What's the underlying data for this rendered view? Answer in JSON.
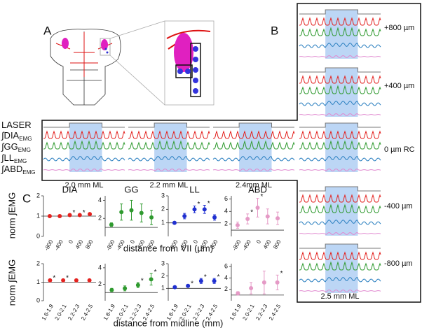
{
  "panel_labels": [
    "A",
    "B",
    "C"
  ],
  "trace_labels": [
    {
      "text": "LASER"
    },
    {
      "text": "∫DIA",
      "sub": "EMG"
    },
    {
      "text": "∫GG",
      "sub": "EMG"
    },
    {
      "text": "∫LL",
      "sub": "EMG"
    },
    {
      "text": "∫ABD",
      "sub": "EMG"
    }
  ],
  "columns": [
    "2.0 mm ML",
    "2.2 mm ML",
    "2.4mm ML",
    "2.5 mm ML"
  ],
  "rc_labels": [
    "+800 µm",
    "+400 µm",
    "0 µm RC",
    "-400 µm",
    "-800 µm"
  ],
  "y_axis_label": "norm ∫EMG",
  "x_axis_labels": [
    "distance from VII (µm)",
    "distance from midline (mm)"
  ],
  "chart_data": [
    {
      "type": "scatter",
      "title": "DIA",
      "color": "#e3221f",
      "x": [
        -800,
        -400,
        0,
        400,
        800
      ],
      "values": [
        1.0,
        1.0,
        1.05,
        1.05,
        1.1
      ],
      "errors": [
        0.03,
        0.03,
        0.04,
        0.04,
        0.04
      ],
      "stars": [
        null,
        null,
        "*",
        "*",
        null
      ],
      "xlim": [
        -1050,
        1050
      ],
      "xticks": [
        -800,
        -400,
        0,
        400,
        800
      ],
      "ylim": [
        0,
        2
      ],
      "yticks": [
        0,
        1,
        2
      ],
      "refline": 1
    },
    {
      "type": "scatter",
      "title": "GG",
      "color": "#2f9a2f",
      "x": [
        -800,
        -400,
        0,
        400,
        800
      ],
      "values": [
        1.3,
        2.7,
        2.9,
        2.6,
        2.1
      ],
      "errors": [
        0.2,
        0.9,
        1.1,
        1.0,
        0.8
      ],
      "stars": [
        null,
        null,
        null,
        null,
        null
      ],
      "xlim": [
        -1050,
        1050
      ],
      "xticks": [
        -800,
        -400,
        0,
        400,
        800
      ],
      "ylim": [
        0,
        4.5
      ],
      "yticks": [
        2,
        4
      ],
      "refline": 1
    },
    {
      "type": "scatter",
      "title": "LL",
      "color": "#2030d0",
      "x": [
        -800,
        -400,
        0,
        400,
        800
      ],
      "values": [
        1.0,
        1.5,
        2.0,
        2.0,
        1.4
      ],
      "errors": [
        0.08,
        0.2,
        0.25,
        0.3,
        0.2
      ],
      "stars": [
        null,
        null,
        "*",
        "*",
        null
      ],
      "xlim": [
        -1050,
        1050
      ],
      "xticks": [
        -800,
        -400,
        0,
        400,
        800
      ],
      "ylim": [
        0,
        3
      ],
      "yticks": [
        1,
        2,
        3
      ],
      "refline": 1
    },
    {
      "type": "scatter",
      "title": "ABD",
      "color": "#e59ac6",
      "x": [
        -800,
        -400,
        0,
        400,
        800
      ],
      "values": [
        1.8,
        2.8,
        4.6,
        3.2,
        2.9
      ],
      "errors": [
        0.5,
        0.8,
        1.5,
        1.2,
        1.0
      ],
      "stars": [
        null,
        "*",
        "*",
        null,
        null
      ],
      "xlim": [
        -1050,
        1050
      ],
      "xticks": [
        -800,
        -400,
        0,
        400,
        800
      ],
      "ylim": [
        0,
        6.5
      ],
      "yticks": [
        2,
        4,
        6
      ],
      "refline": 1
    },
    {
      "type": "scatter",
      "color": "#e3221f",
      "categories": [
        "1.8-1.9",
        "2.0-2.1",
        "2.2-2.3",
        "2.4-2.5"
      ],
      "values": [
        1.1,
        1.1,
        1.1,
        1.1
      ],
      "errors": [
        0.03,
        0.03,
        0.03,
        0.03
      ],
      "stars": [
        "*",
        "*",
        null,
        null
      ],
      "ylim": [
        0,
        2
      ],
      "yticks": [
        0,
        1,
        2
      ],
      "refline": 1
    },
    {
      "type": "scatter",
      "color": "#2f9a2f",
      "categories": [
        "1.8-1.9",
        "2.0-2.1",
        "2.2-2.3",
        "2.4-2.5"
      ],
      "values": [
        1.3,
        1.5,
        1.9,
        2.6
      ],
      "errors": [
        0.2,
        0.3,
        0.3,
        0.7
      ],
      "stars": [
        null,
        null,
        "*",
        "*"
      ],
      "ylim": [
        0,
        4.5
      ],
      "yticks": [
        2,
        4
      ],
      "refline": 1
    },
    {
      "type": "scatter",
      "color": "#2030d0",
      "categories": [
        "1.8-1.9",
        "2.0-2.1",
        "2.2-2.3",
        "2.4-2.5"
      ],
      "values": [
        1.1,
        1.2,
        1.6,
        1.6
      ],
      "errors": [
        0.05,
        0.05,
        0.2,
        0.2
      ],
      "stars": [
        null,
        "*",
        "*",
        "*"
      ],
      "ylim": [
        0,
        3
      ],
      "yticks": [
        1,
        2,
        3
      ],
      "refline": 1
    },
    {
      "type": "scatter",
      "color": "#e59ac6",
      "categories": [
        "1.8-1.9",
        "2.0-2.1",
        "2.2-2.3",
        "2.4-2.5"
      ],
      "values": [
        1.3,
        2.2,
        3.2,
        3.2
      ],
      "errors": [
        0.3,
        1.0,
        2.0,
        1.3
      ],
      "stars": [
        null,
        null,
        null,
        "*"
      ],
      "ylim": [
        0,
        6.5
      ],
      "yticks": [
        2,
        4,
        6
      ],
      "refline": 1
    }
  ]
}
